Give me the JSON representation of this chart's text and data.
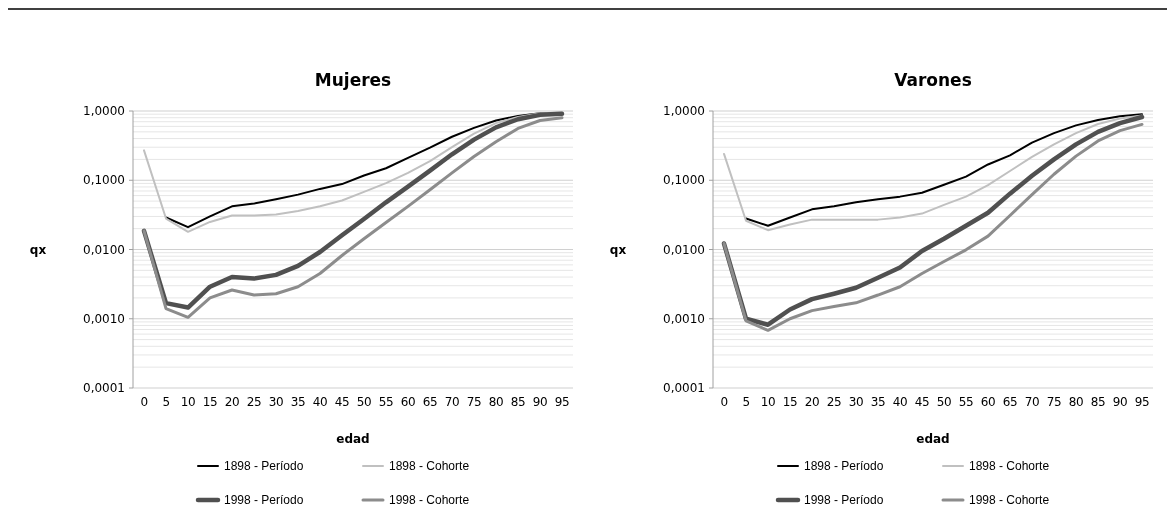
{
  "chart_data": [
    {
      "type": "line",
      "title": "Mujeres",
      "xlabel": "edad",
      "ylabel": "qx",
      "categories": [
        "0",
        "5",
        "10",
        "15",
        "20",
        "25",
        "30",
        "35",
        "40",
        "45",
        "50",
        "55",
        "60",
        "65",
        "70",
        "75",
        "80",
        "85",
        "90",
        "95"
      ],
      "log": true,
      "ylim": [
        0.0001,
        1
      ],
      "yticks": [
        {
          "value": 0.0001,
          "label": "0,0001"
        },
        {
          "value": 0.001,
          "label": "0,0010"
        },
        {
          "value": 0.01,
          "label": "0,0100"
        },
        {
          "value": 0.1,
          "label": "0,1000"
        },
        {
          "value": 1,
          "label": "1,0000"
        }
      ],
      "grid": "y",
      "legend": "bottom",
      "marker": "none",
      "line_style": "solid",
      "series": [
        {
          "name": "1898 - Período",
          "color": "#000000",
          "values": [
            null,
            0.029,
            0.021,
            0.03,
            0.042,
            0.046,
            0.053,
            0.062,
            0.075,
            0.088,
            0.117,
            0.149,
            0.21,
            0.295,
            0.425,
            0.57,
            0.73,
            0.85,
            0.93,
            0.93
          ]
        },
        {
          "name": "1898 - Cohorte",
          "color": "#c0c0c0",
          "values": [
            0.27,
            0.028,
            0.018,
            0.025,
            0.031,
            0.031,
            0.032,
            0.036,
            0.042,
            0.051,
            0.068,
            0.091,
            0.128,
            0.189,
            0.3,
            0.47,
            0.67,
            0.82,
            0.93,
            0.95
          ]
        },
        {
          "name": "1998 -  Período",
          "color": "#505050",
          "values": [
            0.0186,
            0.00168,
            0.00145,
            0.0029,
            0.004,
            0.0038,
            0.0043,
            0.0058,
            0.0092,
            0.0161,
            0.0276,
            0.048,
            0.081,
            0.138,
            0.237,
            0.386,
            0.58,
            0.76,
            0.88,
            0.91
          ]
        },
        {
          "name": "1998 - Cohorte",
          "color": "#8c8c8c",
          "values": [
            0.0186,
            0.0014,
            0.00105,
            0.002,
            0.0026,
            0.0022,
            0.0023,
            0.0029,
            0.0045,
            0.0082,
            0.0143,
            0.0245,
            0.042,
            0.073,
            0.128,
            0.22,
            0.36,
            0.56,
            0.73,
            0.8
          ]
        }
      ]
    },
    {
      "type": "line",
      "title": "Varones",
      "xlabel": "edad",
      "ylabel": "qx",
      "categories": [
        "0",
        "5",
        "10",
        "15",
        "20",
        "25",
        "30",
        "35",
        "40",
        "45",
        "50",
        "55",
        "60",
        "65",
        "70",
        "75",
        "80",
        "85",
        "90",
        "95"
      ],
      "log": true,
      "ylim": [
        0.0001,
        1
      ],
      "yticks": [
        {
          "value": 0.0001,
          "label": "0,0001"
        },
        {
          "value": 0.001,
          "label": "0,0010"
        },
        {
          "value": 0.01,
          "label": "0,0100"
        },
        {
          "value": 0.1,
          "label": "0,1000"
        },
        {
          "value": 1,
          "label": "1,0000"
        }
      ],
      "grid": "y",
      "legend": "bottom",
      "marker": "none",
      "line_style": "solid",
      "series": [
        {
          "name": "1898 - Período",
          "color": "#000000",
          "values": [
            null,
            0.028,
            0.022,
            0.029,
            0.038,
            0.042,
            0.048,
            0.053,
            0.058,
            0.066,
            0.086,
            0.113,
            0.169,
            0.229,
            0.35,
            0.48,
            0.62,
            0.74,
            0.84,
            0.9
          ]
        },
        {
          "name": "1898 - Cohorte",
          "color": "#c0c0c0",
          "values": [
            0.24,
            0.026,
            0.019,
            0.023,
            0.027,
            0.027,
            0.027,
            0.027,
            0.029,
            0.033,
            0.044,
            0.058,
            0.085,
            0.136,
            0.217,
            0.33,
            0.48,
            0.65,
            0.78,
            0.86
          ]
        },
        {
          "name": "1998 -  Período",
          "color": "#505050",
          "values": [
            0.0122,
            0.001,
            0.00082,
            0.00136,
            0.00192,
            0.0023,
            0.0028,
            0.0039,
            0.0055,
            0.0095,
            0.0143,
            0.022,
            0.034,
            0.064,
            0.116,
            0.2,
            0.33,
            0.5,
            0.67,
            0.82
          ]
        },
        {
          "name": "1998 - Cohorte",
          "color": "#8c8c8c",
          "values": [
            0.0122,
            0.00093,
            0.00068,
            0.001,
            0.00131,
            0.0015,
            0.0017,
            0.0022,
            0.0029,
            0.0045,
            0.0067,
            0.0099,
            0.0156,
            0.031,
            0.062,
            0.122,
            0.223,
            0.37,
            0.52,
            0.64
          ]
        }
      ]
    }
  ]
}
